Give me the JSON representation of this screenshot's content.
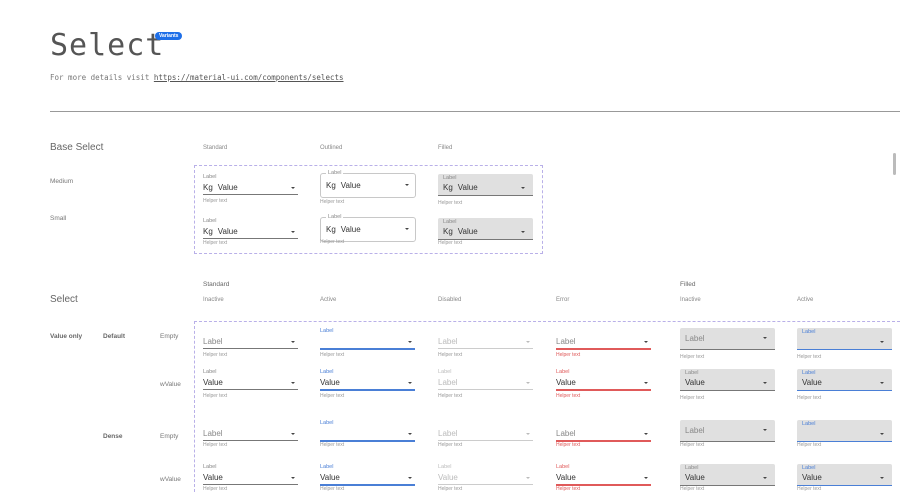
{
  "header": {
    "title": "Select",
    "badge": "Variants",
    "subtitle_prefix": "For more details visit",
    "link": "https://material-ui.com/components/selects"
  },
  "base": {
    "heading": "Base Select",
    "columns": [
      "Standard",
      "Outlined",
      "Filled"
    ],
    "rows": [
      {
        "name": "Medium",
        "fields": [
          {
            "label": "Label",
            "prefix": "Kg",
            "value": "Value",
            "helper": "Helper text"
          },
          {
            "label": "Label",
            "prefix": "Kg",
            "value": "Value",
            "helper": "Helper text"
          },
          {
            "label": "Label",
            "prefix": "Kg",
            "value": "Value",
            "helper": "Helper text"
          }
        ]
      },
      {
        "name": "Small",
        "fields": [
          {
            "label": "Label",
            "prefix": "Kg",
            "value": "Value",
            "helper": "Helper text"
          },
          {
            "label": "Label",
            "prefix": "Kg",
            "value": "Value",
            "helper": "Helper text"
          },
          {
            "label": "Label",
            "prefix": "Kg",
            "value": "Value",
            "helper": "Helper text"
          }
        ]
      }
    ]
  },
  "select": {
    "heading": "Select",
    "groups": [
      "Standard",
      "Filled"
    ],
    "columns": [
      "Inactive",
      "Active",
      "Disabled",
      "Error",
      "Inactive",
      "Active"
    ],
    "row_group": "Value only",
    "rows": [
      {
        "density": "Default",
        "kind": "Empty",
        "fields": [
          {
            "label": "Label",
            "value": "",
            "helper": "Helper text"
          },
          {
            "label": "Label",
            "value": "",
            "helper": "Helper text"
          },
          {
            "label": "Label",
            "value": "",
            "helper": "Helper text"
          },
          {
            "label": "Label",
            "value": "",
            "helper": "Helper text"
          },
          {
            "label": "Label",
            "value": "",
            "helper": "Helper text"
          },
          {
            "label": "Label",
            "value": "",
            "helper": "Helper text"
          }
        ]
      },
      {
        "density": "",
        "kind": "wValue",
        "fields": [
          {
            "label": "Label",
            "value": "Value",
            "helper": "Helper text"
          },
          {
            "label": "Label",
            "value": "Value",
            "helper": "Helper text"
          },
          {
            "label": "Label",
            "value": "Label",
            "helper": "Helper text"
          },
          {
            "label": "Label",
            "value": "Value",
            "helper": "Helper text"
          },
          {
            "label": "Label",
            "value": "Value",
            "helper": "Helper text"
          },
          {
            "label": "Label",
            "value": "Value",
            "helper": "Helper text"
          }
        ]
      },
      {
        "density": "Dense",
        "kind": "Empty",
        "fields": [
          {
            "label": "Label",
            "value": "",
            "helper": "Helper text"
          },
          {
            "label": "Label",
            "value": "",
            "helper": "Helper text"
          },
          {
            "label": "Label",
            "value": "",
            "helper": "Helper text"
          },
          {
            "label": "Label",
            "value": "",
            "helper": "Helper text"
          },
          {
            "label": "Label",
            "value": "",
            "helper": "Helper text"
          },
          {
            "label": "Label",
            "value": "",
            "helper": "Helper text"
          }
        ]
      },
      {
        "density": "",
        "kind": "wValue",
        "fields": [
          {
            "label": "Label",
            "value": "Value",
            "helper": "Helper text"
          },
          {
            "label": "Label",
            "value": "Value",
            "helper": "Helper text"
          },
          {
            "label": "Label",
            "value": "Value",
            "helper": "Helper text"
          },
          {
            "label": "Label",
            "value": "Value",
            "helper": "Helper text"
          },
          {
            "label": "Label",
            "value": "Value",
            "helper": "Helper text"
          },
          {
            "label": "Label",
            "value": "Value",
            "helper": "Helper text"
          }
        ]
      }
    ]
  },
  "colors": {
    "accent": "#4a7fd6",
    "error": "#e05a5a",
    "badge": "#1e6fe8",
    "dashed_border": "#b9b0e8"
  }
}
